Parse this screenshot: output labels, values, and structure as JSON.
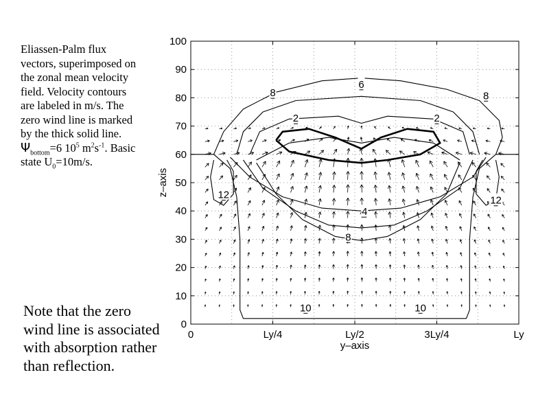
{
  "caption": {
    "line1": "Eliassen-Palm flux vectors, superimposed on the zonal mean velocity field. Velocity contours are labeled in m/s. The zero wind line is marked by the thick solid line.",
    "psi_symbol": "Ψ",
    "psi_sub": "bottom",
    "psi_value": "=6 10",
    "psi_exp": "5",
    "psi_unit": " m",
    "psi_unit_exp": "2",
    "psi_unit_s": "s",
    "psi_unit_s_exp": "-1",
    "basic_state": ".  Basic state U",
    "u_sub": "0",
    "u_value": "=10m/s."
  },
  "note": "Note that the zero wind line is associated with absorption rather than reflection.",
  "chart_data": {
    "type": "contour",
    "xlabel": "y–axis",
    "ylabel": "z–axis",
    "xlim": [
      0,
      1
    ],
    "ylim": [
      0,
      100
    ],
    "x_ticks": [
      0,
      0.25,
      0.5,
      0.75,
      1
    ],
    "x_tick_labels": [
      "0",
      "Ly/4",
      "Ly/2",
      "3Ly/4",
      "Ly"
    ],
    "y_ticks": [
      0,
      10,
      20,
      30,
      40,
      50,
      60,
      70,
      80,
      90,
      100
    ],
    "y_tick_labels": [
      "0",
      "10",
      "20",
      "30",
      "40",
      "50",
      "60",
      "70",
      "80",
      "90",
      "100"
    ],
    "grid": true,
    "contour_labels": [
      {
        "text": "8",
        "x": 0.25,
        "z": 82
      },
      {
        "text": "6",
        "x": 0.52,
        "z": 85
      },
      {
        "text": "8",
        "x": 0.9,
        "z": 81
      },
      {
        "text": "2",
        "x": 0.32,
        "z": 73
      },
      {
        "text": "2",
        "x": 0.75,
        "z": 73
      },
      {
        "text": "12",
        "x": 0.1,
        "z": 46
      },
      {
        "text": "12",
        "x": 0.93,
        "z": 44
      },
      {
        "text": "4",
        "x": 0.53,
        "z": 40
      },
      {
        "text": "8",
        "x": 0.48,
        "z": 31
      },
      {
        "text": "10",
        "x": 0.35,
        "z": 6
      },
      {
        "text": "10",
        "x": 0.7,
        "z": 6
      }
    ]
  }
}
